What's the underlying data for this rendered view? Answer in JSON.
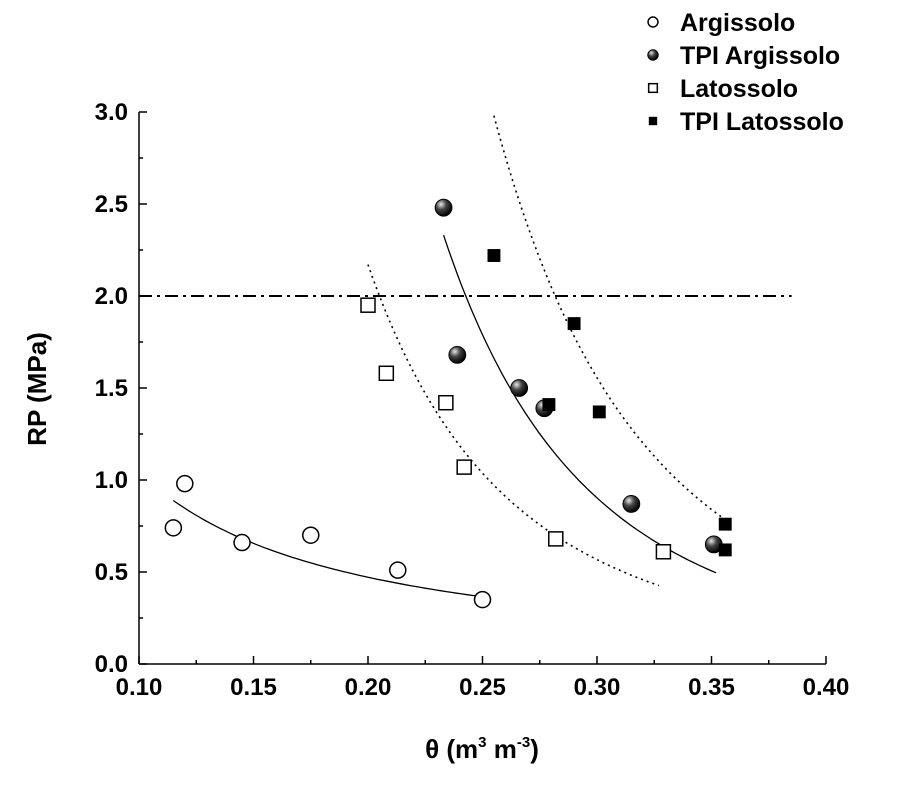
{
  "chart_data": {
    "type": "scatter",
    "title": "",
    "xlabel": "θ (m³ m⁻³)",
    "xlabel_parts": {
      "main": "θ (m",
      "sup1": "3",
      "mid": " m",
      "sup2": "-3",
      "end": ")"
    },
    "ylabel": "RP (MPa)",
    "xlim": [
      0.1,
      0.4
    ],
    "ylim": [
      0.0,
      3.0
    ],
    "xticks": [
      "0.10",
      "0.15",
      "0.20",
      "0.25",
      "0.30",
      "0.35",
      "0.40"
    ],
    "yticks": [
      "0.0",
      "0.5",
      "1.0",
      "1.5",
      "2.0",
      "2.5",
      "3.0"
    ],
    "legend_position": "top-right",
    "threshold": {
      "y": 2.0,
      "x_range": [
        0.1,
        0.385
      ],
      "style": "dash-dot"
    },
    "series": [
      {
        "name": "Argissolo",
        "marker": "open-circle",
        "points": [
          [
            0.115,
            0.74
          ],
          [
            0.12,
            0.98
          ],
          [
            0.145,
            0.66
          ],
          [
            0.175,
            0.7
          ],
          [
            0.213,
            0.51
          ],
          [
            0.25,
            0.35
          ]
        ],
        "fit": {
          "style": "solid",
          "x_range": [
            0.115,
            0.25
          ],
          "power": {
            "a": 0.0746,
            "b": -1.1456
          }
        }
      },
      {
        "name": "TPI Argissolo",
        "marker": "filled-circle",
        "points": [
          [
            0.233,
            2.48
          ],
          [
            0.239,
            1.68
          ],
          [
            0.266,
            1.5
          ],
          [
            0.277,
            1.39
          ],
          [
            0.315,
            0.87
          ],
          [
            0.351,
            0.65
          ]
        ],
        "fit": {
          "style": "solid",
          "x_range": [
            0.233,
            0.352
          ],
          "power": {
            "a": 0.00985,
            "b": -3.7525
          }
        }
      },
      {
        "name": "Latossolo",
        "marker": "open-square",
        "points": [
          [
            0.2,
            1.95
          ],
          [
            0.208,
            1.58
          ],
          [
            0.234,
            1.42
          ],
          [
            0.242,
            1.07
          ],
          [
            0.282,
            0.68
          ],
          [
            0.329,
            0.61
          ]
        ],
        "fit": {
          "style": "dotted",
          "x_range": [
            0.2,
            0.327
          ],
          "power": {
            "a": 0.01054,
            "b": -3.3103
          }
        }
      },
      {
        "name": "TPI Latossolo",
        "marker": "filled-square",
        "points": [
          [
            0.255,
            2.22
          ],
          [
            0.279,
            1.41
          ],
          [
            0.29,
            1.85
          ],
          [
            0.301,
            1.37
          ],
          [
            0.356,
            0.76
          ],
          [
            0.356,
            0.62
          ]
        ],
        "fit": {
          "style": "dotted",
          "x_range": [
            0.255,
            0.357
          ],
          "power": {
            "a": 0.0126,
            "b": -4.0
          }
        }
      }
    ]
  }
}
